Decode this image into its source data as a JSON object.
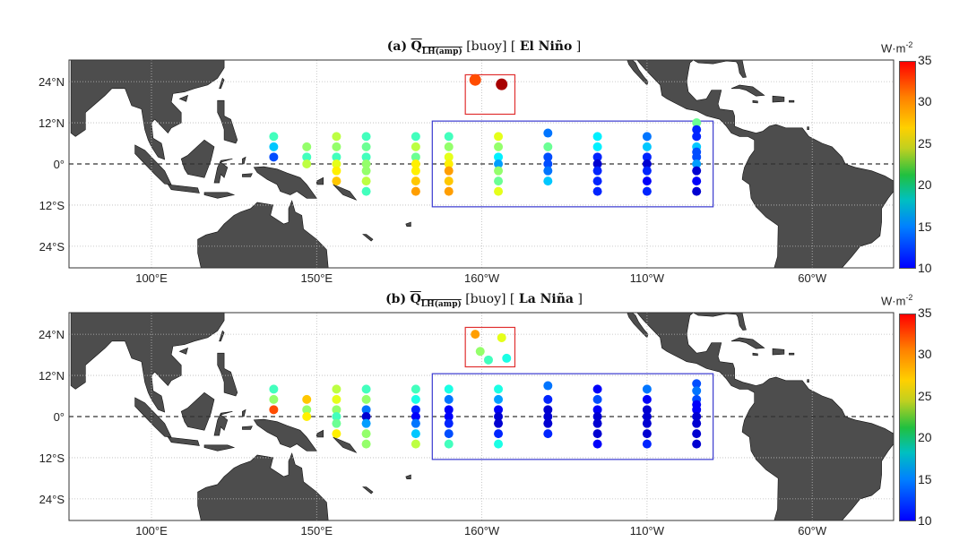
{
  "colors": {
    "land": "#4d4d4d",
    "region_box": "#3a3ad0",
    "hawaii_box": "#e03030",
    "equator": "#333333"
  },
  "colorbar": {
    "unit": "W·m",
    "unit_exp": "-2",
    "ticks": [
      "35",
      "30",
      "25",
      "20",
      "15",
      "10"
    ],
    "range": [
      10,
      35
    ],
    "colormap": "jet"
  },
  "axes": {
    "x_ticks": [
      {
        "lon": 100,
        "label": "100°E"
      },
      {
        "lon": 150,
        "label": "150°E"
      },
      {
        "lon": -160,
        "label": "160°W"
      },
      {
        "lon": -110,
        "label": "110°W"
      },
      {
        "lon": -60,
        "label": "60°W"
      }
    ],
    "y_ticks": [
      {
        "lat": 24,
        "label": "24°N"
      },
      {
        "lat": 12,
        "label": "12°N"
      },
      {
        "lat": 0,
        "label": "0°"
      },
      {
        "lat": -12,
        "label": "12°S"
      },
      {
        "lat": -24,
        "label": "24°S"
      }
    ]
  },
  "chart_data": [
    {
      "type": "scatter",
      "title": {
        "panel": "(a)",
        "symbol": "Q",
        "subscript": "LH(amp)",
        "source": "[buoy]",
        "phase_open": "[",
        "phase": "El Niño",
        "phase_close": "]"
      },
      "boxes": [
        {
          "lon": [
            -175,
            -90
          ],
          "lat": [
            -12.5,
            12.5
          ],
          "color": "blue"
        },
        {
          "lon": [
            -165,
            -150
          ],
          "lat": [
            14.5,
            26
          ],
          "color": "red"
        }
      ],
      "points": [
        {
          "lon": 137,
          "lat": 8,
          "value": 21
        },
        {
          "lon": 137,
          "lat": 5,
          "value": 18
        },
        {
          "lon": 137,
          "lat": 2,
          "value": 15
        },
        {
          "lon": 147,
          "lat": 5,
          "value": 23
        },
        {
          "lon": 147,
          "lat": 2,
          "value": 21
        },
        {
          "lon": 147,
          "lat": 0,
          "value": 24
        },
        {
          "lon": 156,
          "lat": 8,
          "value": 24
        },
        {
          "lon": 156,
          "lat": 5,
          "value": 23
        },
        {
          "lon": 156,
          "lat": 2,
          "value": 21
        },
        {
          "lon": 156,
          "lat": 0,
          "value": 25
        },
        {
          "lon": 156,
          "lat": -2,
          "value": 26
        },
        {
          "lon": 156,
          "lat": -5,
          "value": 27
        },
        {
          "lon": 165,
          "lat": 8,
          "value": 21
        },
        {
          "lon": 165,
          "lat": 5,
          "value": 22
        },
        {
          "lon": 165,
          "lat": 2,
          "value": 21
        },
        {
          "lon": 165,
          "lat": 0,
          "value": 23
        },
        {
          "lon": 165,
          "lat": -2,
          "value": 23
        },
        {
          "lon": 165,
          "lat": -5,
          "value": 24
        },
        {
          "lon": 165,
          "lat": -8,
          "value": 21
        },
        {
          "lon": 180,
          "lat": 8,
          "value": 21
        },
        {
          "lon": 180,
          "lat": 5,
          "value": 24
        },
        {
          "lon": 180,
          "lat": 2,
          "value": 22
        },
        {
          "lon": 180,
          "lat": 0,
          "value": 26
        },
        {
          "lon": 180,
          "lat": -2,
          "value": 26
        },
        {
          "lon": 180,
          "lat": -5,
          "value": 27
        },
        {
          "lon": 180,
          "lat": -8,
          "value": 28
        },
        {
          "lon": -170,
          "lat": 8,
          "value": 21
        },
        {
          "lon": -170,
          "lat": 5,
          "value": 23
        },
        {
          "lon": -170,
          "lat": 2,
          "value": 25
        },
        {
          "lon": -170,
          "lat": 0,
          "value": 26
        },
        {
          "lon": -170,
          "lat": -2,
          "value": 28
        },
        {
          "lon": -170,
          "lat": -5,
          "value": 27
        },
        {
          "lon": -170,
          "lat": -8,
          "value": 28
        },
        {
          "lon": -155,
          "lat": 8,
          "value": 25
        },
        {
          "lon": -155,
          "lat": 5,
          "value": 23
        },
        {
          "lon": -155,
          "lat": 2,
          "value": 19
        },
        {
          "lon": -155,
          "lat": 0,
          "value": 17
        },
        {
          "lon": -155,
          "lat": -2,
          "value": 23
        },
        {
          "lon": -155,
          "lat": -5,
          "value": 22
        },
        {
          "lon": -155,
          "lat": -8,
          "value": 25
        },
        {
          "lon": -140,
          "lat": 9,
          "value": 16
        },
        {
          "lon": -140,
          "lat": 5,
          "value": 22
        },
        {
          "lon": -140,
          "lat": 2,
          "value": 15
        },
        {
          "lon": -140,
          "lat": 0,
          "value": 15
        },
        {
          "lon": -140,
          "lat": -2,
          "value": 16
        },
        {
          "lon": -140,
          "lat": -5,
          "value": 18
        },
        {
          "lon": -125,
          "lat": 8,
          "value": 19
        },
        {
          "lon": -125,
          "lat": 5,
          "value": 19
        },
        {
          "lon": -125,
          "lat": 2,
          "value": 14
        },
        {
          "lon": -125,
          "lat": 0,
          "value": 12
        },
        {
          "lon": -125,
          "lat": -2,
          "value": 14
        },
        {
          "lon": -125,
          "lat": -5,
          "value": 14
        },
        {
          "lon": -125,
          "lat": -8,
          "value": 14
        },
        {
          "lon": -110,
          "lat": 8,
          "value": 16
        },
        {
          "lon": -110,
          "lat": 5,
          "value": 18
        },
        {
          "lon": -110,
          "lat": 2,
          "value": 14
        },
        {
          "lon": -110,
          "lat": 0,
          "value": 12
        },
        {
          "lon": -110,
          "lat": -2,
          "value": 14
        },
        {
          "lon": -110,
          "lat": -5,
          "value": 13
        },
        {
          "lon": -110,
          "lat": -8,
          "value": 14
        },
        {
          "lon": -95,
          "lat": 12,
          "value": 22
        },
        {
          "lon": -95,
          "lat": 10,
          "value": 14
        },
        {
          "lon": -95,
          "lat": 8,
          "value": 14
        },
        {
          "lon": -95,
          "lat": 5,
          "value": 18
        },
        {
          "lon": -95,
          "lat": 3.5,
          "value": 15
        },
        {
          "lon": -95,
          "lat": 2,
          "value": 15
        },
        {
          "lon": -95,
          "lat": 0,
          "value": 17
        },
        {
          "lon": -95,
          "lat": -2,
          "value": 12
        },
        {
          "lon": -95,
          "lat": -5,
          "value": 13
        },
        {
          "lon": -95,
          "lat": -8,
          "value": 12
        },
        {
          "lon": -162,
          "lat": 24.5,
          "value": 30,
          "big": true
        },
        {
          "lon": -154,
          "lat": 23.2,
          "value": 34,
          "big": true
        }
      ]
    },
    {
      "type": "scatter",
      "title": {
        "panel": "(b)",
        "symbol": "Q",
        "subscript": "LH(amp)",
        "source": "[buoy]",
        "phase_open": "[",
        "phase": "La Niña",
        "phase_close": "]"
      },
      "boxes": [
        {
          "lon": [
            -175,
            -90
          ],
          "lat": [
            -12.5,
            12.5
          ],
          "color": "blue"
        },
        {
          "lon": [
            -165,
            -150
          ],
          "lat": [
            14.5,
            26
          ],
          "color": "red"
        }
      ],
      "points": [
        {
          "lon": 137,
          "lat": 8,
          "value": 21
        },
        {
          "lon": 137,
          "lat": 5,
          "value": 23
        },
        {
          "lon": 137,
          "lat": 2,
          "value": 30
        },
        {
          "lon": 147,
          "lat": 5,
          "value": 27
        },
        {
          "lon": 147,
          "lat": 2,
          "value": 23
        },
        {
          "lon": 147,
          "lat": 0,
          "value": 26
        },
        {
          "lon": 156,
          "lat": 8,
          "value": 24
        },
        {
          "lon": 156,
          "lat": 5,
          "value": 25
        },
        {
          "lon": 156,
          "lat": 2,
          "value": 23
        },
        {
          "lon": 156,
          "lat": 0,
          "value": 21
        },
        {
          "lon": 156,
          "lat": -2,
          "value": 22
        },
        {
          "lon": 156,
          "lat": -5,
          "value": 26
        },
        {
          "lon": 165,
          "lat": 8,
          "value": 21
        },
        {
          "lon": 165,
          "lat": 5,
          "value": 23
        },
        {
          "lon": 165,
          "lat": 2,
          "value": 16
        },
        {
          "lon": 165,
          "lat": 0,
          "value": 12
        },
        {
          "lon": 165,
          "lat": -2,
          "value": 17
        },
        {
          "lon": 165,
          "lat": -5,
          "value": 23
        },
        {
          "lon": 165,
          "lat": -8,
          "value": 23
        },
        {
          "lon": 180,
          "lat": 8,
          "value": 21
        },
        {
          "lon": 180,
          "lat": 5,
          "value": 20
        },
        {
          "lon": 180,
          "lat": 2,
          "value": 14
        },
        {
          "lon": 180,
          "lat": 0,
          "value": 13
        },
        {
          "lon": 180,
          "lat": -2,
          "value": 16
        },
        {
          "lon": 180,
          "lat": -5,
          "value": 18
        },
        {
          "lon": 180,
          "lat": -8,
          "value": 24
        },
        {
          "lon": -170,
          "lat": 8,
          "value": 20
        },
        {
          "lon": -170,
          "lat": 5,
          "value": 16
        },
        {
          "lon": -170,
          "lat": 2,
          "value": 13
        },
        {
          "lon": -170,
          "lat": 0,
          "value": 13
        },
        {
          "lon": -170,
          "lat": -2,
          "value": 14
        },
        {
          "lon": -170,
          "lat": -5,
          "value": 15
        },
        {
          "lon": -170,
          "lat": -8,
          "value": 21
        },
        {
          "lon": -155,
          "lat": 8,
          "value": 20
        },
        {
          "lon": -155,
          "lat": 5,
          "value": 17
        },
        {
          "lon": -155,
          "lat": 2,
          "value": 13
        },
        {
          "lon": -155,
          "lat": 0,
          "value": 12
        },
        {
          "lon": -155,
          "lat": -2,
          "value": 12
        },
        {
          "lon": -155,
          "lat": -5,
          "value": 14
        },
        {
          "lon": -155,
          "lat": -8,
          "value": 20
        },
        {
          "lon": -140,
          "lat": 9,
          "value": 16
        },
        {
          "lon": -140,
          "lat": 5,
          "value": 14
        },
        {
          "lon": -140,
          "lat": 2,
          "value": 12
        },
        {
          "lon": -140,
          "lat": 0,
          "value": 12
        },
        {
          "lon": -140,
          "lat": -2,
          "value": 12
        },
        {
          "lon": -140,
          "lat": -5,
          "value": 14
        },
        {
          "lon": -125,
          "lat": 8,
          "value": 13
        },
        {
          "lon": -125,
          "lat": 5,
          "value": 15
        },
        {
          "lon": -125,
          "lat": 2,
          "value": 13
        },
        {
          "lon": -125,
          "lat": 0,
          "value": 12
        },
        {
          "lon": -125,
          "lat": -2,
          "value": 12
        },
        {
          "lon": -125,
          "lat": -5,
          "value": 12
        },
        {
          "lon": -125,
          "lat": -8,
          "value": 13
        },
        {
          "lon": -110,
          "lat": 8,
          "value": 16
        },
        {
          "lon": -110,
          "lat": 5,
          "value": 13
        },
        {
          "lon": -110,
          "lat": 2,
          "value": 12
        },
        {
          "lon": -110,
          "lat": 0,
          "value": 12
        },
        {
          "lon": -110,
          "lat": -2,
          "value": 12
        },
        {
          "lon": -110,
          "lat": -5,
          "value": 12
        },
        {
          "lon": -110,
          "lat": -8,
          "value": 14
        },
        {
          "lon": -95,
          "lat": 9.6,
          "value": 15
        },
        {
          "lon": -95,
          "lat": 7.5,
          "value": 16
        },
        {
          "lon": -95,
          "lat": 5,
          "value": 15
        },
        {
          "lon": -95,
          "lat": 3.5,
          "value": 13
        },
        {
          "lon": -95,
          "lat": 2,
          "value": 13
        },
        {
          "lon": -95,
          "lat": 0,
          "value": 12
        },
        {
          "lon": -95,
          "lat": -2,
          "value": 12
        },
        {
          "lon": -95,
          "lat": -5,
          "value": 12
        },
        {
          "lon": -95,
          "lat": -8,
          "value": 12
        },
        {
          "lon": -162,
          "lat": 24,
          "value": 28
        },
        {
          "lon": -154,
          "lat": 23,
          "value": 25
        },
        {
          "lon": -160.5,
          "lat": 19,
          "value": 23
        },
        {
          "lon": -158,
          "lat": 16.5,
          "value": 21
        },
        {
          "lon": -152.5,
          "lat": 17,
          "value": 20
        }
      ]
    }
  ]
}
